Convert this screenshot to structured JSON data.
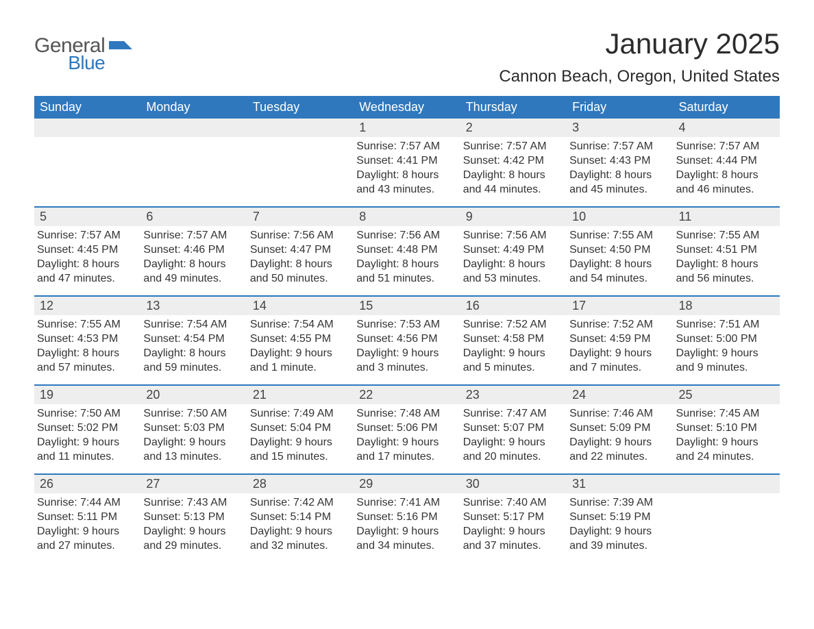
{
  "logo": {
    "line1": "General",
    "line2": "Blue"
  },
  "title": "January 2025",
  "location": "Cannon Beach, Oregon, United States",
  "colors": {
    "header_bg": "#2f78bd",
    "header_text": "#ffffff",
    "daynum_bg": "#eeeeee",
    "row_border": "#2f78bd",
    "text": "#333333",
    "logo_gray": "#555555",
    "logo_blue": "#2f78bd",
    "background": "#ffffff"
  },
  "day_names": [
    "Sunday",
    "Monday",
    "Tuesday",
    "Wednesday",
    "Thursday",
    "Friday",
    "Saturday"
  ],
  "weeks": [
    [
      {
        "n": "",
        "sunrise": "",
        "sunset": "",
        "daylight": ""
      },
      {
        "n": "",
        "sunrise": "",
        "sunset": "",
        "daylight": ""
      },
      {
        "n": "",
        "sunrise": "",
        "sunset": "",
        "daylight": ""
      },
      {
        "n": "1",
        "sunrise": "Sunrise: 7:57 AM",
        "sunset": "Sunset: 4:41 PM",
        "daylight": "Daylight: 8 hours and 43 minutes."
      },
      {
        "n": "2",
        "sunrise": "Sunrise: 7:57 AM",
        "sunset": "Sunset: 4:42 PM",
        "daylight": "Daylight: 8 hours and 44 minutes."
      },
      {
        "n": "3",
        "sunrise": "Sunrise: 7:57 AM",
        "sunset": "Sunset: 4:43 PM",
        "daylight": "Daylight: 8 hours and 45 minutes."
      },
      {
        "n": "4",
        "sunrise": "Sunrise: 7:57 AM",
        "sunset": "Sunset: 4:44 PM",
        "daylight": "Daylight: 8 hours and 46 minutes."
      }
    ],
    [
      {
        "n": "5",
        "sunrise": "Sunrise: 7:57 AM",
        "sunset": "Sunset: 4:45 PM",
        "daylight": "Daylight: 8 hours and 47 minutes."
      },
      {
        "n": "6",
        "sunrise": "Sunrise: 7:57 AM",
        "sunset": "Sunset: 4:46 PM",
        "daylight": "Daylight: 8 hours and 49 minutes."
      },
      {
        "n": "7",
        "sunrise": "Sunrise: 7:56 AM",
        "sunset": "Sunset: 4:47 PM",
        "daylight": "Daylight: 8 hours and 50 minutes."
      },
      {
        "n": "8",
        "sunrise": "Sunrise: 7:56 AM",
        "sunset": "Sunset: 4:48 PM",
        "daylight": "Daylight: 8 hours and 51 minutes."
      },
      {
        "n": "9",
        "sunrise": "Sunrise: 7:56 AM",
        "sunset": "Sunset: 4:49 PM",
        "daylight": "Daylight: 8 hours and 53 minutes."
      },
      {
        "n": "10",
        "sunrise": "Sunrise: 7:55 AM",
        "sunset": "Sunset: 4:50 PM",
        "daylight": "Daylight: 8 hours and 54 minutes."
      },
      {
        "n": "11",
        "sunrise": "Sunrise: 7:55 AM",
        "sunset": "Sunset: 4:51 PM",
        "daylight": "Daylight: 8 hours and 56 minutes."
      }
    ],
    [
      {
        "n": "12",
        "sunrise": "Sunrise: 7:55 AM",
        "sunset": "Sunset: 4:53 PM",
        "daylight": "Daylight: 8 hours and 57 minutes."
      },
      {
        "n": "13",
        "sunrise": "Sunrise: 7:54 AM",
        "sunset": "Sunset: 4:54 PM",
        "daylight": "Daylight: 8 hours and 59 minutes."
      },
      {
        "n": "14",
        "sunrise": "Sunrise: 7:54 AM",
        "sunset": "Sunset: 4:55 PM",
        "daylight": "Daylight: 9 hours and 1 minute."
      },
      {
        "n": "15",
        "sunrise": "Sunrise: 7:53 AM",
        "sunset": "Sunset: 4:56 PM",
        "daylight": "Daylight: 9 hours and 3 minutes."
      },
      {
        "n": "16",
        "sunrise": "Sunrise: 7:52 AM",
        "sunset": "Sunset: 4:58 PM",
        "daylight": "Daylight: 9 hours and 5 minutes."
      },
      {
        "n": "17",
        "sunrise": "Sunrise: 7:52 AM",
        "sunset": "Sunset: 4:59 PM",
        "daylight": "Daylight: 9 hours and 7 minutes."
      },
      {
        "n": "18",
        "sunrise": "Sunrise: 7:51 AM",
        "sunset": "Sunset: 5:00 PM",
        "daylight": "Daylight: 9 hours and 9 minutes."
      }
    ],
    [
      {
        "n": "19",
        "sunrise": "Sunrise: 7:50 AM",
        "sunset": "Sunset: 5:02 PM",
        "daylight": "Daylight: 9 hours and 11 minutes."
      },
      {
        "n": "20",
        "sunrise": "Sunrise: 7:50 AM",
        "sunset": "Sunset: 5:03 PM",
        "daylight": "Daylight: 9 hours and 13 minutes."
      },
      {
        "n": "21",
        "sunrise": "Sunrise: 7:49 AM",
        "sunset": "Sunset: 5:04 PM",
        "daylight": "Daylight: 9 hours and 15 minutes."
      },
      {
        "n": "22",
        "sunrise": "Sunrise: 7:48 AM",
        "sunset": "Sunset: 5:06 PM",
        "daylight": "Daylight: 9 hours and 17 minutes."
      },
      {
        "n": "23",
        "sunrise": "Sunrise: 7:47 AM",
        "sunset": "Sunset: 5:07 PM",
        "daylight": "Daylight: 9 hours and 20 minutes."
      },
      {
        "n": "24",
        "sunrise": "Sunrise: 7:46 AM",
        "sunset": "Sunset: 5:09 PM",
        "daylight": "Daylight: 9 hours and 22 minutes."
      },
      {
        "n": "25",
        "sunrise": "Sunrise: 7:45 AM",
        "sunset": "Sunset: 5:10 PM",
        "daylight": "Daylight: 9 hours and 24 minutes."
      }
    ],
    [
      {
        "n": "26",
        "sunrise": "Sunrise: 7:44 AM",
        "sunset": "Sunset: 5:11 PM",
        "daylight": "Daylight: 9 hours and 27 minutes."
      },
      {
        "n": "27",
        "sunrise": "Sunrise: 7:43 AM",
        "sunset": "Sunset: 5:13 PM",
        "daylight": "Daylight: 9 hours and 29 minutes."
      },
      {
        "n": "28",
        "sunrise": "Sunrise: 7:42 AM",
        "sunset": "Sunset: 5:14 PM",
        "daylight": "Daylight: 9 hours and 32 minutes."
      },
      {
        "n": "29",
        "sunrise": "Sunrise: 7:41 AM",
        "sunset": "Sunset: 5:16 PM",
        "daylight": "Daylight: 9 hours and 34 minutes."
      },
      {
        "n": "30",
        "sunrise": "Sunrise: 7:40 AM",
        "sunset": "Sunset: 5:17 PM",
        "daylight": "Daylight: 9 hours and 37 minutes."
      },
      {
        "n": "31",
        "sunrise": "Sunrise: 7:39 AM",
        "sunset": "Sunset: 5:19 PM",
        "daylight": "Daylight: 9 hours and 39 minutes."
      },
      {
        "n": "",
        "sunrise": "",
        "sunset": "",
        "daylight": ""
      }
    ]
  ]
}
